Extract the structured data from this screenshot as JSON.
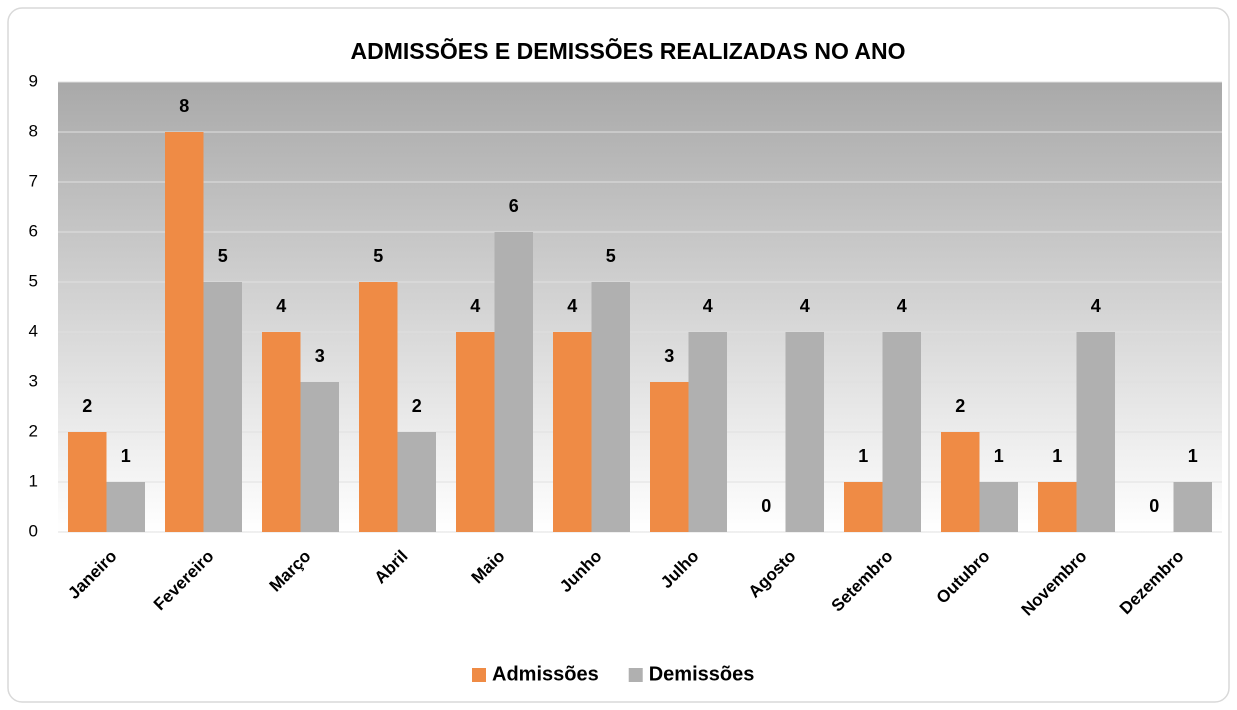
{
  "chart_data": {
    "type": "bar",
    "title": "ADMISSÕES E DEMISSÕES REALIZADAS NO ANO",
    "categories": [
      "Janeiro",
      "Fevereiro",
      "Março",
      "Abril",
      "Maio",
      "Junho",
      "Julho",
      "Agosto",
      "Setembro",
      "Outubro",
      "Novembro",
      "Dezembro"
    ],
    "series": [
      {
        "name": "Admissões",
        "color": "#ef8b45",
        "values": [
          2,
          8,
          4,
          5,
          4,
          4,
          3,
          0,
          1,
          2,
          1,
          0
        ]
      },
      {
        "name": "Demissões",
        "color": "#b0b0b0",
        "values": [
          1,
          5,
          3,
          2,
          6,
          5,
          4,
          4,
          4,
          1,
          4,
          1
        ]
      }
    ],
    "ylim": [
      0,
      9
    ],
    "yticks": [
      0,
      1,
      2,
      3,
      4,
      5,
      6,
      7,
      8,
      9
    ],
    "grid": true,
    "legend": "bottom"
  }
}
